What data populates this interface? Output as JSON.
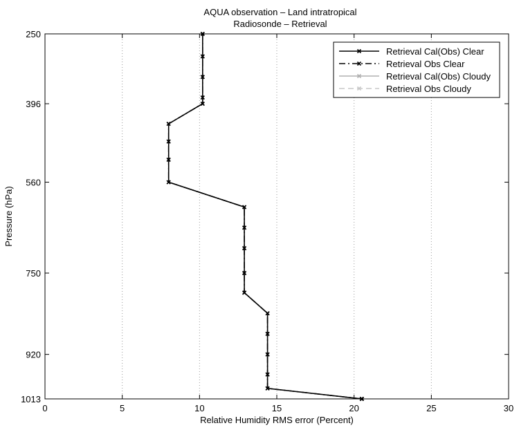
{
  "chart_data": {
    "type": "line",
    "title": "AQUA observation – Land intratropical",
    "subtitle": "Radiosonde – Retrieval",
    "xlabel": "Relative Humidity RMS error (Percent)",
    "ylabel": "Pressure (hPa)",
    "xlim": [
      0,
      30
    ],
    "ylim": [
      250,
      1013
    ],
    "y_reversed": true,
    "grid_x": true,
    "xticks": [
      0,
      5,
      10,
      15,
      20,
      25,
      30
    ],
    "yticks": [
      250,
      396,
      560,
      750,
      920,
      1013
    ],
    "legend_position": "top-right",
    "series": [
      {
        "name": "Retrieval Cal(Obs) Clear",
        "color": "#000000",
        "style": "solid",
        "x": [
          10.2,
          10.2,
          10.2,
          10.2,
          10.2,
          8.0,
          8.0,
          8.0,
          8.0,
          12.9,
          12.9,
          12.9,
          12.9,
          12.9,
          14.4,
          14.4,
          14.4,
          14.4,
          14.4,
          20.5,
          20.5,
          20.5
        ],
        "y": [
          250,
          297,
          340,
          383,
          396,
          438,
          475,
          513,
          560,
          612,
          655,
          698,
          750,
          791,
          834,
          877,
          920,
          962,
          991,
          1013,
          1013,
          1013
        ]
      },
      {
        "name": "Retrieval Obs Clear",
        "color": "#000000",
        "style": "dashdot",
        "x": [
          10.2,
          10.2,
          10.2,
          10.2,
          10.2,
          8.0,
          8.0,
          8.0,
          8.0,
          12.9,
          12.9,
          12.9,
          12.9,
          12.9,
          14.4,
          14.4,
          14.4,
          14.4,
          14.4,
          20.5,
          20.5,
          20.5
        ],
        "y": [
          250,
          297,
          340,
          383,
          396,
          438,
          475,
          513,
          560,
          612,
          655,
          698,
          750,
          791,
          834,
          877,
          920,
          962,
          991,
          1013,
          1013,
          1013
        ]
      },
      {
        "name": "Retrieval Cal(Obs) Cloudy",
        "color": "#b0b0b0",
        "style": "solid",
        "x": [],
        "y": []
      },
      {
        "name": "Retrieval Obs Cloudy",
        "color": "#c8c8c8",
        "style": "dashed",
        "x": [],
        "y": []
      }
    ]
  }
}
